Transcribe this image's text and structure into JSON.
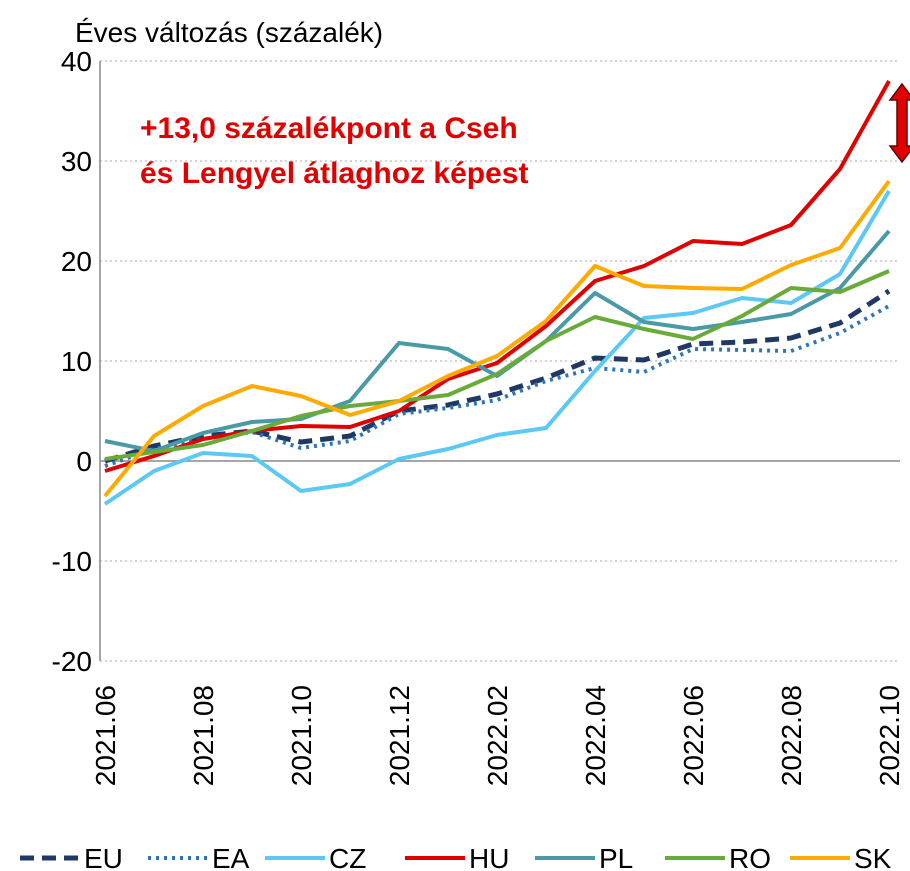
{
  "chart_data": {
    "type": "line",
    "title": "Éves változás (százalék)",
    "annotation": [
      "+13,0 százalékpont a Cseh",
      "és Lengyel átlaghoz képest"
    ],
    "categories": [
      "2021.06",
      null,
      "2021.08",
      null,
      "2021.10",
      null,
      "2021.12",
      null,
      "2022.02",
      null,
      "2022.04",
      null,
      "2022.06",
      null,
      "2022.08",
      null,
      "2022.10"
    ],
    "ylim": [
      -20,
      40
    ],
    "yticks": [
      -20,
      -10,
      0,
      10,
      20,
      30,
      40
    ],
    "grid": true,
    "legend": "bottom",
    "series": [
      {
        "name": "EU",
        "color": "#1f3864",
        "dash": "dashed",
        "values": [
          0.0,
          1.5,
          2.5,
          3.0,
          1.9,
          2.5,
          5.0,
          5.6,
          6.7,
          8.3,
          10.3,
          10.1,
          11.7,
          11.9,
          12.3,
          13.8,
          17.0
        ]
      },
      {
        "name": "EA",
        "color": "#2e75b6",
        "dash": "dotted",
        "values": [
          -0.5,
          1.2,
          2.2,
          2.9,
          1.3,
          2.0,
          4.7,
          5.3,
          6.1,
          8.0,
          9.3,
          8.9,
          11.2,
          11.1,
          11.0,
          12.8,
          15.5
        ]
      },
      {
        "name": "CZ",
        "color": "#5bc8f5",
        "values": [
          -4.3,
          -1.0,
          0.8,
          0.5,
          -3.0,
          -2.3,
          0.2,
          1.2,
          2.6,
          3.3,
          9.0,
          14.3,
          14.8,
          16.3,
          15.8,
          18.7,
          27.0
        ]
      },
      {
        "name": "HU",
        "color": "#e00000",
        "values": [
          -1.0,
          0.5,
          2.2,
          3.0,
          3.5,
          3.4,
          5.0,
          8.2,
          9.8,
          13.5,
          18.0,
          19.5,
          22.0,
          21.7,
          23.6,
          29.2,
          38.0
        ]
      },
      {
        "name": "PL",
        "color": "#4a9aa5",
        "values": [
          2.0,
          1.0,
          2.8,
          3.9,
          4.2,
          6.0,
          11.8,
          11.2,
          8.5,
          12.0,
          16.8,
          13.9,
          13.2,
          13.9,
          14.7,
          17.3,
          23.0
        ]
      },
      {
        "name": "RO",
        "color": "#6aaa3a",
        "values": [
          0.2,
          0.9,
          1.6,
          3.0,
          4.5,
          5.5,
          6.0,
          6.6,
          8.7,
          12.0,
          14.4,
          13.2,
          12.2,
          14.5,
          17.3,
          16.9,
          19.0
        ]
      },
      {
        "name": "SK",
        "color": "#ffaa00",
        "values": [
          -3.5,
          2.5,
          5.5,
          7.5,
          6.5,
          4.6,
          6.0,
          8.5,
          10.5,
          14.0,
          19.5,
          17.5,
          17.3,
          17.2,
          19.6,
          21.3,
          28.0
        ]
      }
    ]
  }
}
